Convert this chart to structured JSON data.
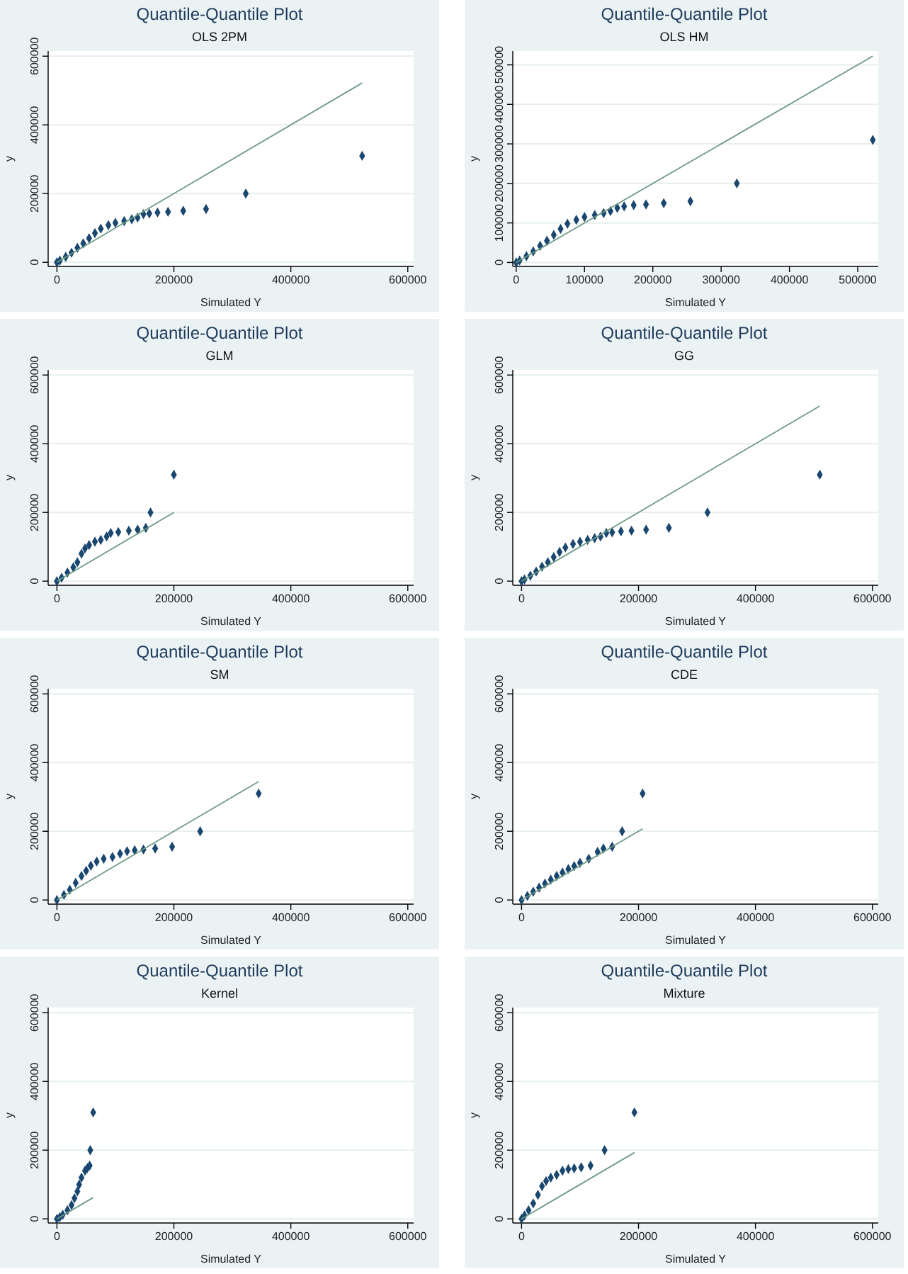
{
  "chart_data": [
    {
      "type": "scatter",
      "title": "Quantile-Quantile Plot",
      "subtitle": "OLS 2PM",
      "xlabel": "Simulated Y",
      "ylabel": "y",
      "xlim": [
        -15000,
        610000
      ],
      "ylim": [
        -12000,
        615000
      ],
      "xticks": [
        0,
        200000,
        400000,
        600000
      ],
      "yticks": [
        0,
        200000,
        400000,
        600000
      ],
      "grid": "y",
      "marker": "diamond",
      "series": [
        {
          "type": "scatter",
          "color": "#1a476f",
          "x": [
            0,
            5000,
            15000,
            25000,
            35000,
            45000,
            55000,
            65000,
            75000,
            88000,
            100000,
            115000,
            128000,
            138000,
            148000,
            158000,
            172000,
            190000,
            216000,
            255000,
            323000,
            522000
          ],
          "values": [
            0,
            5000,
            16000,
            28000,
            42000,
            55000,
            70000,
            85000,
            98000,
            108000,
            115000,
            120000,
            125000,
            130000,
            140000,
            142000,
            145000,
            147000,
            150000,
            155000,
            200000,
            310000
          ]
        },
        {
          "type": "line",
          "marker": "none",
          "color": "#6e9a84",
          "x": [
            0,
            522000
          ],
          "values": [
            0,
            522000
          ]
        }
      ]
    },
    {
      "type": "scatter",
      "title": "Quantile-Quantile Plot",
      "subtitle": "OLS HM",
      "xlabel": "Simulated Y",
      "ylabel": "y",
      "xlim": [
        -5000,
        530000
      ],
      "ylim": [
        -10000,
        535000
      ],
      "xticks": [
        0,
        100000,
        200000,
        300000,
        400000,
        500000
      ],
      "yticks": [
        0,
        100000,
        200000,
        300000,
        400000,
        500000
      ],
      "grid": "y",
      "marker": "diamond",
      "series": [
        {
          "type": "scatter",
          "color": "#1a476f",
          "x": [
            0,
            5000,
            15000,
            25000,
            35000,
            45000,
            55000,
            65000,
            75000,
            88000,
            100000,
            115000,
            128000,
            138000,
            148000,
            158000,
            172000,
            190000,
            216000,
            255000,
            323000,
            522000
          ],
          "values": [
            0,
            5000,
            16000,
            28000,
            42000,
            55000,
            70000,
            85000,
            98000,
            108000,
            115000,
            120000,
            125000,
            130000,
            138000,
            142000,
            145000,
            147000,
            150000,
            155000,
            200000,
            310000
          ]
        },
        {
          "type": "line",
          "marker": "none",
          "color": "#6e9a84",
          "x": [
            0,
            522000
          ],
          "values": [
            0,
            522000
          ]
        }
      ]
    },
    {
      "type": "scatter",
      "title": "Quantile-Quantile Plot",
      "subtitle": "GLM",
      "xlabel": "Simulated Y",
      "ylabel": "y",
      "xlim": [
        -15000,
        610000
      ],
      "ylim": [
        -12000,
        615000
      ],
      "xticks": [
        0,
        200000,
        400000,
        600000
      ],
      "yticks": [
        0,
        200000,
        400000,
        600000
      ],
      "grid": "y",
      "marker": "diamond",
      "series": [
        {
          "type": "scatter",
          "color": "#1a476f",
          "x": [
            0,
            8000,
            18000,
            28000,
            35000,
            42000,
            48000,
            55000,
            65000,
            75000,
            85000,
            92000,
            105000,
            123000,
            138000,
            152000,
            160000,
            200000
          ],
          "values": [
            0,
            10000,
            25000,
            40000,
            55000,
            80000,
            95000,
            105000,
            115000,
            120000,
            130000,
            140000,
            143000,
            147000,
            150000,
            155000,
            200000,
            310000
          ]
        },
        {
          "type": "line",
          "marker": "none",
          "color": "#6e9a84",
          "x": [
            0,
            200000
          ],
          "values": [
            0,
            200000
          ]
        }
      ]
    },
    {
      "type": "scatter",
      "title": "Quantile-Quantile Plot",
      "subtitle": "GG",
      "xlabel": "Simulated Y",
      "ylabel": "y",
      "xlim": [
        -15000,
        610000
      ],
      "ylim": [
        -12000,
        615000
      ],
      "xticks": [
        0,
        200000,
        400000,
        600000
      ],
      "yticks": [
        0,
        200000,
        400000,
        600000
      ],
      "grid": "y",
      "marker": "diamond",
      "series": [
        {
          "type": "scatter",
          "color": "#1a476f",
          "x": [
            0,
            5000,
            15000,
            25000,
            35000,
            45000,
            55000,
            65000,
            75000,
            88000,
            100000,
            113000,
            125000,
            135000,
            145000,
            155000,
            170000,
            188000,
            213000,
            252000,
            318000,
            510000
          ],
          "values": [
            0,
            5000,
            16000,
            28000,
            42000,
            55000,
            70000,
            85000,
            98000,
            108000,
            115000,
            120000,
            125000,
            130000,
            140000,
            142000,
            145000,
            147000,
            150000,
            155000,
            200000,
            310000
          ]
        },
        {
          "type": "line",
          "marker": "none",
          "color": "#6e9a84",
          "x": [
            0,
            510000
          ],
          "values": [
            0,
            510000
          ]
        }
      ]
    },
    {
      "type": "scatter",
      "title": "Quantile-Quantile Plot",
      "subtitle": "SM",
      "xlabel": "Simulated Y",
      "ylabel": "y",
      "xlim": [
        -15000,
        610000
      ],
      "ylim": [
        -12000,
        615000
      ],
      "xticks": [
        0,
        200000,
        400000,
        600000
      ],
      "yticks": [
        0,
        200000,
        400000,
        600000
      ],
      "grid": "y",
      "marker": "diamond",
      "series": [
        {
          "type": "scatter",
          "color": "#1a476f",
          "x": [
            0,
            12000,
            22000,
            32000,
            42000,
            50000,
            58000,
            68000,
            80000,
            95000,
            108000,
            120000,
            133000,
            148000,
            168000,
            197000,
            245000,
            345000
          ],
          "values": [
            0,
            15000,
            30000,
            50000,
            70000,
            85000,
            100000,
            112000,
            120000,
            125000,
            135000,
            142000,
            145000,
            147000,
            150000,
            155000,
            200000,
            310000
          ]
        },
        {
          "type": "line",
          "marker": "none",
          "color": "#6e9a84",
          "x": [
            0,
            345000
          ],
          "values": [
            0,
            345000
          ]
        }
      ]
    },
    {
      "type": "scatter",
      "title": "Quantile-Quantile Plot",
      "subtitle": "CDE",
      "xlabel": "Simulated Y",
      "ylabel": "y",
      "xlim": [
        -15000,
        610000
      ],
      "ylim": [
        -12000,
        615000
      ],
      "xticks": [
        0,
        200000,
        400000,
        600000
      ],
      "yticks": [
        0,
        200000,
        400000,
        600000
      ],
      "grid": "y",
      "marker": "diamond",
      "series": [
        {
          "type": "scatter",
          "color": "#1a476f",
          "x": [
            0,
            10000,
            20000,
            30000,
            40000,
            50000,
            60000,
            70000,
            80000,
            90000,
            100000,
            115000,
            130000,
            140000,
            155000,
            172000,
            207000
          ],
          "values": [
            0,
            12000,
            24000,
            36000,
            48000,
            59000,
            70000,
            80000,
            90000,
            99000,
            108000,
            120000,
            140000,
            150000,
            155000,
            200000,
            310000
          ]
        },
        {
          "type": "line",
          "marker": "none",
          "color": "#6e9a84",
          "x": [
            0,
            207000
          ],
          "values": [
            0,
            207000
          ]
        }
      ]
    },
    {
      "type": "scatter",
      "title": "Quantile-Quantile Plot",
      "subtitle": "Kernel",
      "xlabel": "Simulated Y",
      "ylabel": "y",
      "xlim": [
        -15000,
        610000
      ],
      "ylim": [
        -12000,
        615000
      ],
      "xticks": [
        0,
        200000,
        400000,
        600000
      ],
      "yticks": [
        0,
        200000,
        400000,
        600000
      ],
      "grid": "y",
      "marker": "diamond",
      "series": [
        {
          "type": "scatter",
          "color": "#1a476f",
          "x": [
            0,
            5000,
            10000,
            18000,
            25000,
            30000,
            35000,
            38000,
            42000,
            48000,
            52000,
            56000,
            57000,
            62000
          ],
          "values": [
            0,
            5000,
            12000,
            25000,
            40000,
            60000,
            80000,
            100000,
            120000,
            140000,
            148000,
            155000,
            200000,
            310000
          ]
        },
        {
          "type": "line",
          "marker": "none",
          "color": "#6e9a84",
          "x": [
            0,
            62000
          ],
          "values": [
            0,
            62000
          ]
        }
      ]
    },
    {
      "type": "scatter",
      "title": "Quantile-Quantile Plot",
      "subtitle": "Mixture",
      "xlabel": "Simulated Y",
      "ylabel": "y",
      "xlim": [
        -15000,
        610000
      ],
      "ylim": [
        -12000,
        615000
      ],
      "xticks": [
        0,
        200000,
        400000,
        600000
      ],
      "yticks": [
        0,
        200000,
        400000,
        600000
      ],
      "grid": "y",
      "marker": "diamond",
      "series": [
        {
          "type": "scatter",
          "color": "#1a476f",
          "x": [
            0,
            5000,
            12000,
            20000,
            28000,
            35000,
            42000,
            50000,
            60000,
            70000,
            80000,
            90000,
            102000,
            118000,
            142000,
            193000
          ],
          "values": [
            0,
            10000,
            25000,
            45000,
            70000,
            95000,
            110000,
            120000,
            128000,
            140000,
            145000,
            147000,
            150000,
            155000,
            200000,
            310000
          ]
        },
        {
          "type": "line",
          "marker": "none",
          "color": "#6e9a84",
          "x": [
            0,
            193000
          ],
          "values": [
            0,
            193000
          ]
        }
      ]
    }
  ]
}
